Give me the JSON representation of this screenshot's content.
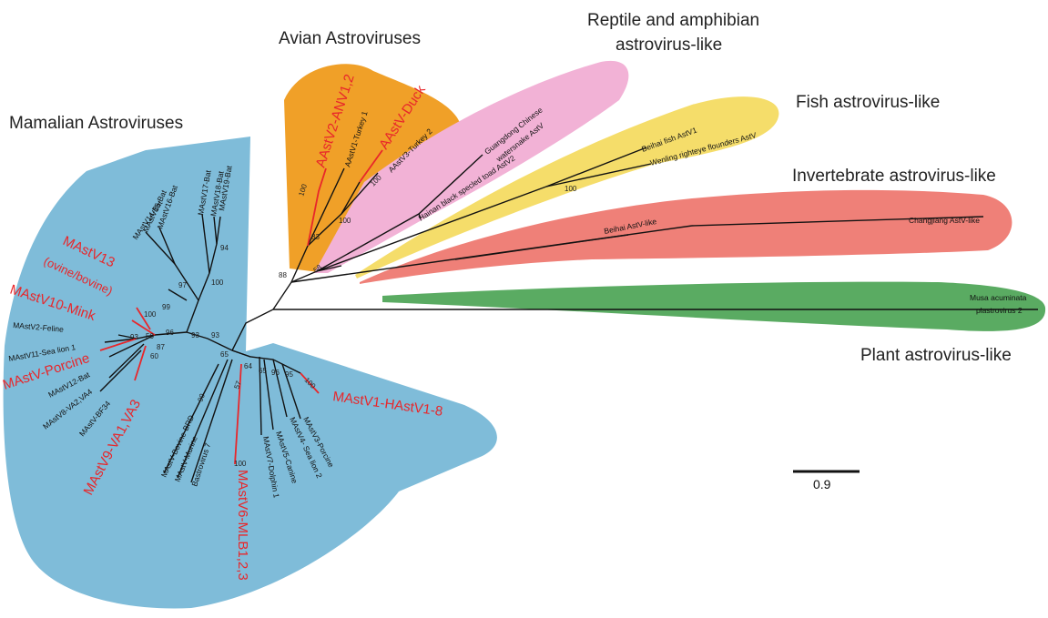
{
  "groups": {
    "mammalian": "Mamalian Astroviruses",
    "avian": "Avian Astroviruses",
    "reptile_1": "Reptile and amphibian",
    "reptile_2": "astrovirus-like",
    "fish": "Fish astrovirus-like",
    "invertebrate": "Invertebrate astrovirus-like",
    "plant": "Plant astrovirus-like"
  },
  "colors": {
    "mammalian": "#7fbcd9",
    "avian": "#f0a028",
    "reptile": "#f2b2d6",
    "fish": "#f5dd6a",
    "invertebrate": "#ef8078",
    "plant": "#5aab62",
    "highlight": "#e8262a"
  },
  "leaves": {
    "aastv2": "AAstV2-ANV1,2",
    "aastv1": "AAstV1-Turkey 1",
    "aastv_duck": "AAstV-Duck",
    "aastv3": "AAstV3-Turkey 2",
    "guangdong_1": "Guangdong Chinese",
    "guangdong_2": "watersnake AstV",
    "hainan": "Hainan black specled toad AstV2",
    "beihai_fish": "Beihai fish AstV1",
    "wenling": "Wenling righteye flounders AstV",
    "beihai_inv": "Beihai AstV-like",
    "changjiang": "Changjiang AstV-like",
    "musa_1": "Musa acuminata",
    "musa_2": "plastrovirus 2",
    "mastv19": "MAstV19-Bat",
    "mastv18": "MAstV18-Bat",
    "mastv17": "MAstV17-Bat",
    "mastv16": "MAstV16-Bat",
    "mastv15": "MAstV15-Bat",
    "mastv14": "MAstV14-Bat",
    "mastv13_1": "MAstV13",
    "mastv13_2": "(ovine/bovine)",
    "mastv10": "MAstV10-Mink",
    "mastv2": "MAstV2-Feline",
    "mastv11": "MAstV11-Sea lion 1",
    "mastv_porcine": "MAstV-Porcine",
    "mastv12": "MAstV12-Bat",
    "mastv8": "MAstV8-VA2,VA4",
    "mastv_bf34": "MAstV-BF34",
    "mastv9": "MAstV9-VA1,VA3",
    "mastv1": "MAstV1-HAstV1-8",
    "mastv3": "MAstV3-Porcine",
    "mastv4": "MAstV4- Sea lion 2",
    "mastv5": "MAstV5-Canine",
    "mastv7": "MAstV7-Dolphin 1",
    "mastv6": "MAstV6-MLB1,2,3",
    "bastrovirus": "Bastrovirus 7",
    "murine": "MAstV-Murine",
    "bovine_brd": "MAstV-Bovine-BRD"
  },
  "bootstrap": {
    "b100_avian2": "100",
    "b83": "83",
    "b100_avian1": "100",
    "b100_avian3": "100",
    "b88": "88",
    "b58": "58",
    "b100_fish": "100",
    "b94": "94",
    "b100_bat": "100",
    "b97": "97",
    "b99": "99",
    "b93a": "93",
    "b93b": "93",
    "b100_mink": "100",
    "b96": "96",
    "b93c": "93",
    "b50": "50",
    "b87": "87",
    "b60": "60",
    "b65": "65",
    "b64": "64",
    "b65b": "65",
    "b96b": "96",
    "b95": "95",
    "b100_hastv": "100",
    "b90": "90",
    "b57": "57",
    "b100_mlb": "100"
  },
  "scale_bar": "0.9"
}
